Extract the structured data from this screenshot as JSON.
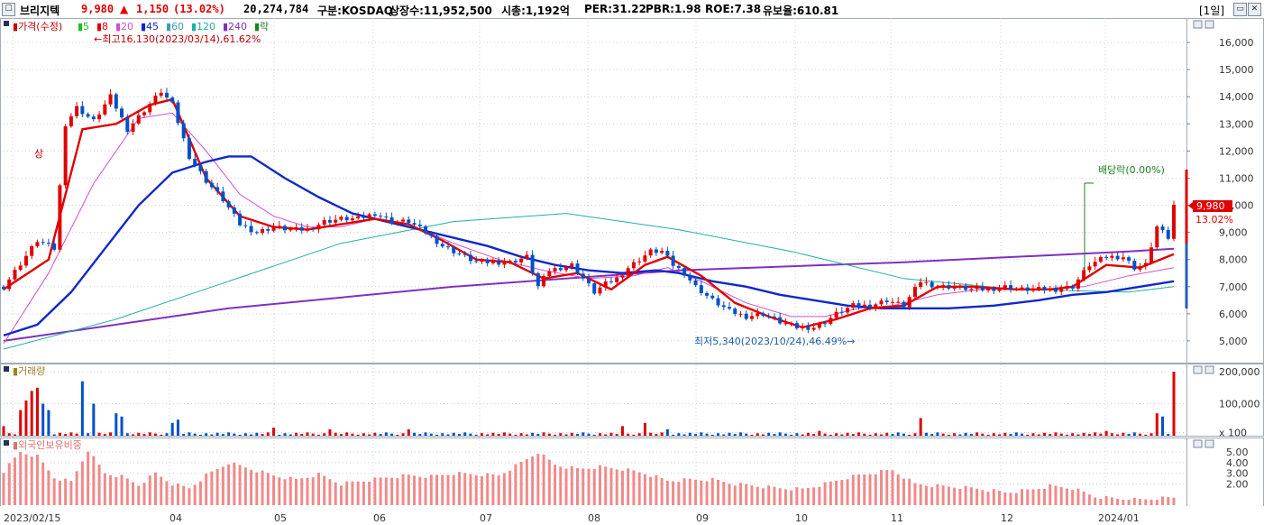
{
  "window": {
    "stock_name": "브리지텍",
    "price": "9,980",
    "change_arrow": "▲",
    "change": "1,150",
    "change_pct": "(13.02%)",
    "volume": "20,274,784",
    "market": "구분:KOSDAQ",
    "listed_shares": "상장수:11,952,500",
    "market_cap": "시총:1,192억",
    "per": "PER:31.22",
    "pbr": "PBR:1.98",
    "roe": "ROE:7.38",
    "float_ratio": "유보율:610.81",
    "period_button": "[1일]",
    "colors": {
      "up": "#e00000",
      "down": "#0050c8"
    }
  },
  "price_panel": {
    "legend_label": "가격(수정)",
    "ma_legend": [
      {
        "label": "5",
        "color": "#20c020"
      },
      {
        "label": "8",
        "color": "#e00000"
      },
      {
        "label": "20",
        "color": "#d050d0"
      },
      {
        "label": "45",
        "color": "#1028c8"
      },
      {
        "label": "60",
        "color": "#40a0b0"
      },
      {
        "label": "120",
        "color": "#20b0a0"
      },
      {
        "label": "240",
        "color": "#8030c0"
      },
      {
        "label": "락",
        "color": "#208020"
      }
    ],
    "high_annotation": "←최고16,130(2023/03/14),61.62%",
    "low_annotation": "최저5,340(2023/10/24),46.49%→",
    "dividend_annotation": "배당락(0.00%)",
    "limit_up_marker": "상",
    "current_price_label": "9,980",
    "current_pct_label": "13.02%"
  },
  "volume_panel": {
    "legend_label": "거래량"
  },
  "foreign_panel": {
    "legend_label": "외국인보유비중"
  },
  "chart_data": {
    "type": "candlestick",
    "price_axis": {
      "ticks": [
        "16,000",
        "15,000",
        "14,000",
        "13,000",
        "12,000",
        "11,000",
        "10,000",
        "9,000",
        "8,000",
        "7,000",
        "6,000",
        "5,000"
      ],
      "ylim": [
        4200,
        16900
      ]
    },
    "volume_axis": {
      "ticks": [
        "200,000",
        "100,000",
        "x 100"
      ],
      "ylim": [
        0,
        220000
      ]
    },
    "foreign_axis": {
      "ticks": [
        "5.00",
        "4.00",
        "3.00",
        "2.00"
      ],
      "ylim": [
        0,
        6.2
      ]
    },
    "x_ticks": [
      "2023/02/15",
      "04",
      "05",
      "06",
      "07",
      "08",
      "09",
      "10",
      "11",
      "12",
      "2024/01"
    ],
    "close_path": [
      [
        0,
        7000
      ],
      [
        6,
        8700
      ],
      [
        9,
        8400
      ],
      [
        11,
        13000
      ],
      [
        13,
        13600
      ],
      [
        16,
        13100
      ],
      [
        19,
        14000
      ],
      [
        22,
        12800
      ],
      [
        25,
        13500
      ],
      [
        28,
        14200
      ],
      [
        30,
        13700
      ],
      [
        33,
        11800
      ],
      [
        36,
        10900
      ],
      [
        39,
        10200
      ],
      [
        42,
        9300
      ],
      [
        45,
        9000
      ],
      [
        48,
        9200
      ],
      [
        51,
        9100
      ],
      [
        54,
        9100
      ],
      [
        57,
        9400
      ],
      [
        60,
        9500
      ],
      [
        63,
        9500
      ],
      [
        66,
        9700
      ],
      [
        69,
        9400
      ],
      [
        72,
        9400
      ],
      [
        75,
        9000
      ],
      [
        78,
        8500
      ],
      [
        81,
        8200
      ],
      [
        84,
        7900
      ],
      [
        87,
        7900
      ],
      [
        90,
        7900
      ],
      [
        93,
        8100
      ],
      [
        95,
        7000
      ],
      [
        97,
        7600
      ],
      [
        99,
        7700
      ],
      [
        101,
        7800
      ],
      [
        103,
        7300
      ],
      [
        105,
        6800
      ],
      [
        107,
        7100
      ],
      [
        109,
        7300
      ],
      [
        111,
        7700
      ],
      [
        113,
        8000
      ],
      [
        115,
        8300
      ],
      [
        117,
        8300
      ],
      [
        119,
        7800
      ],
      [
        121,
        7500
      ],
      [
        123,
        7000
      ],
      [
        126,
        6500
      ],
      [
        129,
        6100
      ],
      [
        132,
        5900
      ],
      [
        135,
        6000
      ],
      [
        138,
        5700
      ],
      [
        141,
        5500
      ],
      [
        144,
        5500
      ],
      [
        146,
        5700
      ],
      [
        148,
        6000
      ],
      [
        151,
        6300
      ],
      [
        154,
        6300
      ],
      [
        157,
        6500
      ],
      [
        160,
        6300
      ],
      [
        163,
        7200
      ],
      [
        166,
        7000
      ],
      [
        169,
        7000
      ],
      [
        172,
        6900
      ],
      [
        175,
        6900
      ],
      [
        178,
        7000
      ],
      [
        181,
        6900
      ],
      [
        184,
        6900
      ],
      [
        187,
        6900
      ],
      [
        190,
        7000
      ],
      [
        193,
        7800
      ],
      [
        196,
        8100
      ],
      [
        199,
        8100
      ],
      [
        201,
        7700
      ],
      [
        203,
        7800
      ],
      [
        205,
        9200
      ],
      [
        207,
        8800
      ],
      [
        208,
        9980
      ]
    ],
    "ma_series": [
      {
        "name": "8",
        "color": "#e00000",
        "points": [
          [
            0,
            6900
          ],
          [
            8,
            8000
          ],
          [
            14,
            12800
          ],
          [
            20,
            13000
          ],
          [
            26,
            13700
          ],
          [
            30,
            13900
          ],
          [
            36,
            11000
          ],
          [
            42,
            9600
          ],
          [
            48,
            9200
          ],
          [
            54,
            9100
          ],
          [
            60,
            9300
          ],
          [
            66,
            9500
          ],
          [
            72,
            9300
          ],
          [
            78,
            8700
          ],
          [
            84,
            8000
          ],
          [
            90,
            7900
          ],
          [
            96,
            7300
          ],
          [
            102,
            7500
          ],
          [
            108,
            6900
          ],
          [
            114,
            7800
          ],
          [
            118,
            8100
          ],
          [
            124,
            7400
          ],
          [
            130,
            6400
          ],
          [
            136,
            5900
          ],
          [
            142,
            5500
          ],
          [
            148,
            5800
          ],
          [
            154,
            6200
          ],
          [
            160,
            6300
          ],
          [
            166,
            7000
          ],
          [
            172,
            7000
          ],
          [
            180,
            6900
          ],
          [
            186,
            6900
          ],
          [
            190,
            7000
          ],
          [
            196,
            7800
          ],
          [
            202,
            7700
          ],
          [
            208,
            8200
          ]
        ]
      },
      {
        "name": "45",
        "color": "#1028c8",
        "points": [
          [
            0,
            5200
          ],
          [
            6,
            5600
          ],
          [
            12,
            6800
          ],
          [
            18,
            8400
          ],
          [
            24,
            10000
          ],
          [
            30,
            11200
          ],
          [
            36,
            11600
          ],
          [
            40,
            11800
          ],
          [
            44,
            11800
          ],
          [
            50,
            11000
          ],
          [
            56,
            10300
          ],
          [
            62,
            9700
          ],
          [
            68,
            9400
          ],
          [
            74,
            9100
          ],
          [
            80,
            8800
          ],
          [
            86,
            8500
          ],
          [
            92,
            8100
          ],
          [
            98,
            7800
          ],
          [
            104,
            7600
          ],
          [
            110,
            7500
          ],
          [
            116,
            7600
          ],
          [
            120,
            7500
          ],
          [
            126,
            7200
          ],
          [
            132,
            7000
          ],
          [
            138,
            6700
          ],
          [
            144,
            6500
          ],
          [
            150,
            6300
          ],
          [
            156,
            6200
          ],
          [
            162,
            6200
          ],
          [
            168,
            6200
          ],
          [
            176,
            6300
          ],
          [
            184,
            6500
          ],
          [
            190,
            6700
          ],
          [
            196,
            6800
          ],
          [
            202,
            7000
          ],
          [
            208,
            7200
          ]
        ]
      },
      {
        "name": "20",
        "color": "#d050d0",
        "points": [
          [
            0,
            4900
          ],
          [
            8,
            7500
          ],
          [
            16,
            10800
          ],
          [
            24,
            13200
          ],
          [
            30,
            13400
          ],
          [
            36,
            12000
          ],
          [
            42,
            10400
          ],
          [
            48,
            9600
          ],
          [
            54,
            9200
          ],
          [
            60,
            9200
          ],
          [
            66,
            9500
          ],
          [
            72,
            9300
          ],
          [
            80,
            8600
          ],
          [
            88,
            8000
          ],
          [
            96,
            7600
          ],
          [
            104,
            7300
          ],
          [
            112,
            7400
          ],
          [
            118,
            7700
          ],
          [
            124,
            7200
          ],
          [
            132,
            6400
          ],
          [
            140,
            5900
          ],
          [
            146,
            5900
          ],
          [
            152,
            6200
          ],
          [
            158,
            6300
          ],
          [
            166,
            6700
          ],
          [
            174,
            6900
          ],
          [
            184,
            6900
          ],
          [
            192,
            7000
          ],
          [
            200,
            7400
          ],
          [
            208,
            7700
          ]
        ]
      },
      {
        "name": "120",
        "color": "#20b0a0",
        "points": [
          [
            0,
            4700
          ],
          [
            20,
            5800
          ],
          [
            40,
            7200
          ],
          [
            60,
            8600
          ],
          [
            80,
            9400
          ],
          [
            100,
            9700
          ],
          [
            120,
            9100
          ],
          [
            140,
            8300
          ],
          [
            160,
            7300
          ],
          [
            180,
            6900
          ],
          [
            200,
            6800
          ],
          [
            208,
            7000
          ]
        ]
      },
      {
        "name": "240",
        "color": "#8030c0",
        "points": [
          [
            0,
            5000
          ],
          [
            40,
            6200
          ],
          [
            80,
            7000
          ],
          [
            120,
            7600
          ],
          [
            160,
            7900
          ],
          [
            200,
            8300
          ],
          [
            208,
            8400
          ]
        ]
      }
    ],
    "volume_spikes": [
      [
        0,
        30
      ],
      [
        3,
        80
      ],
      [
        4,
        110
      ],
      [
        5,
        140
      ],
      [
        6,
        150
      ],
      [
        7,
        100
      ],
      [
        8,
        80
      ],
      [
        14,
        170
      ],
      [
        16,
        100
      ],
      [
        20,
        70
      ],
      [
        21,
        60
      ],
      [
        30,
        40
      ],
      [
        31,
        50
      ],
      [
        48,
        25
      ],
      [
        58,
        20
      ],
      [
        72,
        20
      ],
      [
        110,
        30
      ],
      [
        114,
        40
      ],
      [
        118,
        20
      ],
      [
        145,
        15
      ],
      [
        163,
        55
      ],
      [
        196,
        15
      ],
      [
        205,
        70
      ],
      [
        206,
        60
      ],
      [
        208,
        200
      ]
    ],
    "foreign_ratio": [
      [
        0,
        3.2
      ],
      [
        3,
        5.0
      ],
      [
        6,
        4.6
      ],
      [
        9,
        2.6
      ],
      [
        12,
        2.2
      ],
      [
        15,
        5.2
      ],
      [
        18,
        3.0
      ],
      [
        21,
        2.7
      ],
      [
        24,
        1.9
      ],
      [
        27,
        3.0
      ],
      [
        30,
        2.0
      ],
      [
        33,
        1.6
      ],
      [
        36,
        2.8
      ],
      [
        40,
        4.0
      ],
      [
        44,
        3.4
      ],
      [
        48,
        2.8
      ],
      [
        52,
        2.4
      ],
      [
        56,
        2.9
      ],
      [
        60,
        2.0
      ],
      [
        64,
        2.3
      ],
      [
        68,
        2.6
      ],
      [
        72,
        2.8
      ],
      [
        76,
        2.7
      ],
      [
        80,
        3.0
      ],
      [
        84,
        2.9
      ],
      [
        88,
        2.8
      ],
      [
        92,
        4.0
      ],
      [
        95,
        5.0
      ],
      [
        98,
        3.8
      ],
      [
        102,
        3.4
      ],
      [
        106,
        3.6
      ],
      [
        110,
        3.4
      ],
      [
        114,
        3.0
      ],
      [
        118,
        2.3
      ],
      [
        122,
        2.4
      ],
      [
        126,
        2.4
      ],
      [
        130,
        2.0
      ],
      [
        134,
        1.8
      ],
      [
        138,
        1.6
      ],
      [
        142,
        1.5
      ],
      [
        146,
        2.0
      ],
      [
        150,
        2.6
      ],
      [
        154,
        3.0
      ],
      [
        158,
        3.3
      ],
      [
        162,
        2.0
      ],
      [
        166,
        1.8
      ],
      [
        170,
        1.7
      ],
      [
        174,
        1.5
      ],
      [
        178,
        1.2
      ],
      [
        182,
        1.4
      ],
      [
        186,
        1.8
      ],
      [
        190,
        1.6
      ],
      [
        194,
        0.8
      ],
      [
        198,
        0.6
      ],
      [
        202,
        0.5
      ],
      [
        204,
        0.6
      ],
      [
        208,
        0.7
      ]
    ]
  }
}
